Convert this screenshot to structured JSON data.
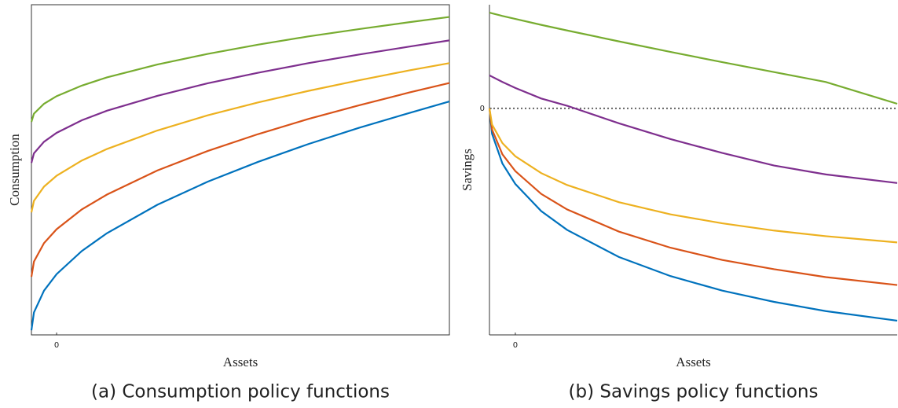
{
  "chart_data": [
    {
      "type": "line",
      "caption": "(a) Consumption policy functions",
      "xlabel": "Assets",
      "ylabel": "Consumption",
      "x": [
        -1,
        -0.9,
        -0.5,
        0,
        1,
        2,
        4,
        6,
        8,
        10,
        12,
        14,
        15.6
      ],
      "xlim": [
        -1,
        15.6
      ],
      "xticks": [
        0
      ],
      "ylim": [
        0,
        10
      ],
      "yticks": [],
      "frame": "box",
      "series": [
        {
          "color": "#0072bd",
          "values": [
            0.14,
            0.68,
            1.34,
            1.84,
            2.54,
            3.08,
            3.94,
            4.64,
            5.24,
            5.78,
            6.27,
            6.72,
            7.07
          ]
        },
        {
          "color": "#d95319",
          "values": [
            1.76,
            2.22,
            2.78,
            3.2,
            3.8,
            4.25,
            4.98,
            5.57,
            6.08,
            6.54,
            6.95,
            7.34,
            7.63
          ]
        },
        {
          "color": "#edb120",
          "values": [
            3.71,
            4.06,
            4.49,
            4.82,
            5.28,
            5.63,
            6.19,
            6.65,
            7.04,
            7.39,
            7.71,
            8.01,
            8.23
          ]
        },
        {
          "color": "#7e2f8e",
          "values": [
            5.21,
            5.5,
            5.85,
            6.12,
            6.5,
            6.79,
            7.24,
            7.62,
            7.94,
            8.23,
            8.49,
            8.73,
            8.92
          ]
        },
        {
          "color": "#77ac30",
          "values": [
            6.45,
            6.7,
            7.0,
            7.23,
            7.55,
            7.8,
            8.19,
            8.51,
            8.79,
            9.04,
            9.26,
            9.47,
            9.63
          ]
        }
      ]
    },
    {
      "type": "line",
      "caption": "(b) Savings policy functions",
      "xlabel": "Assets",
      "ylabel": "Savings",
      "x": [
        -1,
        -0.9,
        -0.5,
        0,
        1,
        2,
        4,
        6,
        8,
        10,
        12,
        14.76
      ],
      "xlim": [
        -1,
        14.76
      ],
      "xticks": [
        0
      ],
      "ylim": [
        -6.86,
        3.14
      ],
      "yticks": [
        0
      ],
      "hlines": [
        0
      ],
      "frame": "open",
      "series": [
        {
          "color": "#0072bd",
          "values": [
            0,
            -0.77,
            -1.67,
            -2.29,
            -3.11,
            -3.68,
            -4.5,
            -5.08,
            -5.52,
            -5.86,
            -6.14,
            -6.43
          ]
        },
        {
          "color": "#d95319",
          "values": [
            0,
            -0.64,
            -1.39,
            -1.9,
            -2.59,
            -3.06,
            -3.73,
            -4.22,
            -4.59,
            -4.87,
            -5.11,
            -5.35
          ]
        },
        {
          "color": "#edb120",
          "values": [
            0,
            -0.49,
            -1.05,
            -1.45,
            -1.96,
            -2.32,
            -2.84,
            -3.21,
            -3.48,
            -3.7,
            -3.87,
            -4.06
          ]
        },
        {
          "color": "#7e2f8e",
          "values": [
            1.0,
            0.96,
            0.8,
            0.62,
            0.3,
            0.08,
            -0.45,
            -0.93,
            -1.35,
            -1.73,
            -2.0,
            -2.26
          ]
        },
        {
          "color": "#77ac30",
          "values": [
            2.9,
            2.88,
            2.8,
            2.71,
            2.53,
            2.36,
            2.03,
            1.71,
            1.4,
            1.1,
            0.8,
            0.14
          ]
        }
      ]
    }
  ]
}
